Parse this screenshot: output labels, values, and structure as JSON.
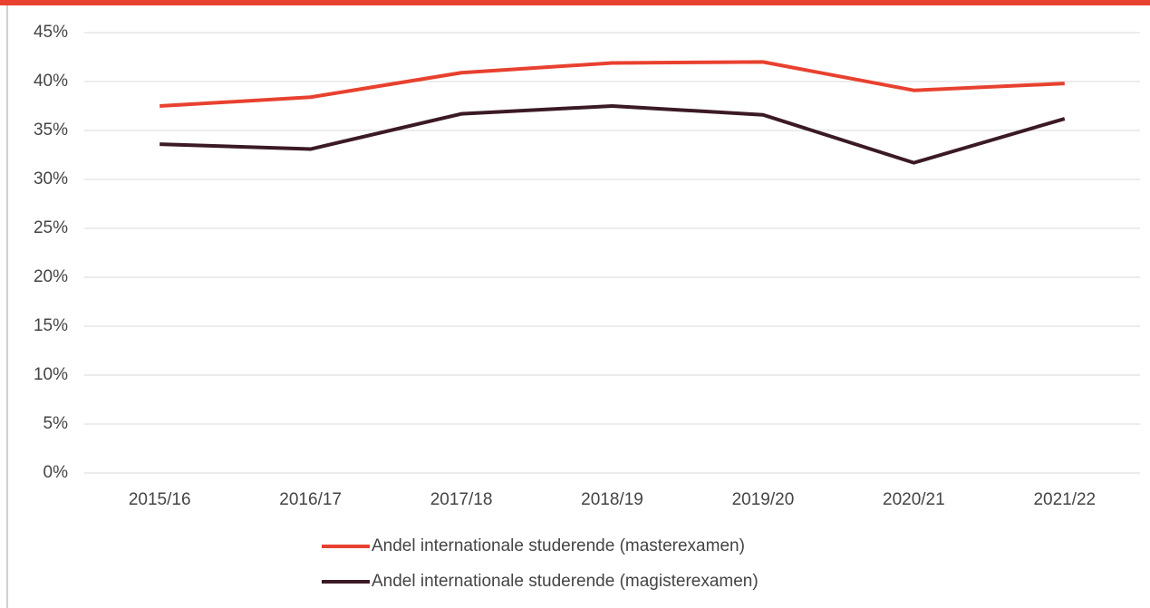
{
  "chart_data": {
    "type": "line",
    "categories": [
      "2015/16",
      "2016/17",
      "2017/18",
      "2018/19",
      "2019/20",
      "2020/21",
      "2021/22"
    ],
    "series": [
      {
        "name": "Andel internationale studerende (masterexamen)",
        "color": "#e8412f",
        "values": [
          37.5,
          38.4,
          40.9,
          41.9,
          42.0,
          39.1,
          39.8
        ]
      },
      {
        "name": "Andel internationale studerende (magisterexamen)",
        "color": "#3b1a24",
        "values": [
          33.6,
          33.1,
          36.7,
          37.5,
          36.6,
          31.7,
          36.2
        ]
      }
    ],
    "ylim": [
      0,
      45
    ],
    "yticks": [
      {
        "value": 0,
        "label": "0%"
      },
      {
        "value": 5,
        "label": "5%"
      },
      {
        "value": 10,
        "label": "10%"
      },
      {
        "value": 15,
        "label": "15%"
      },
      {
        "value": 20,
        "label": "20%"
      },
      {
        "value": 25,
        "label": "25%"
      },
      {
        "value": 30,
        "label": "30%"
      },
      {
        "value": 35,
        "label": "35%"
      },
      {
        "value": 40,
        "label": "40%"
      },
      {
        "value": 45,
        "label": "45%"
      }
    ],
    "grid": true,
    "legend": "bottom"
  }
}
